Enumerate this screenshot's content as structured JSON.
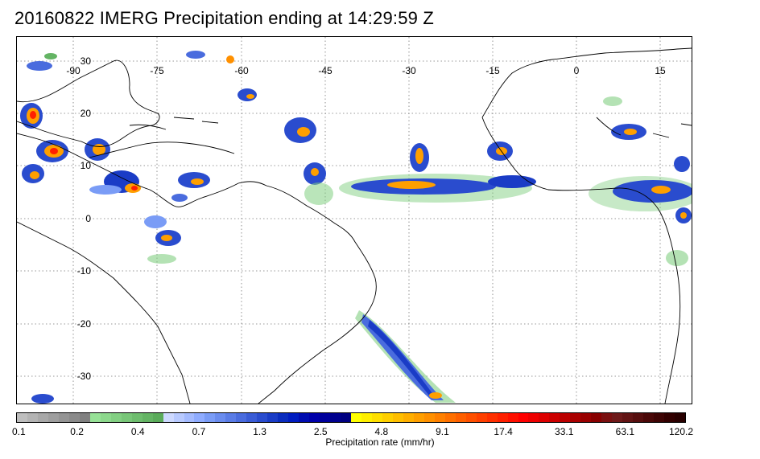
{
  "title": "20160822 IMERG Precipitation ending at 14:29:59 Z",
  "map": {
    "lon_labels": [
      "-90",
      "-75",
      "-60",
      "-45",
      "-30",
      "-15",
      "0",
      "15"
    ],
    "lat_labels": [
      "30",
      "20",
      "10",
      "0",
      "-10",
      "-20",
      "-30"
    ],
    "gridlines": "dotted",
    "coastline_color": "#000000",
    "background_color": "#ffffff",
    "precip_regions": [
      "Gulf of Mexico",
      "Central America",
      "Western Caribbean",
      "Atlantic ITCZ",
      "West Africa",
      "Southern Brazil coast",
      "Northwestern South America"
    ]
  },
  "colorbar": {
    "colors": [
      "#bebebe",
      "#b3b3b3",
      "#a8a8a8",
      "#9e9e9e",
      "#949494",
      "#8a8a8a",
      "#808080",
      "#96e196",
      "#8cd88c",
      "#82cf82",
      "#78c678",
      "#6ebd6e",
      "#64b464",
      "#5aab5a",
      "#cdd9ff",
      "#b8caff",
      "#a4bbff",
      "#8facff",
      "#7a9cf6",
      "#6a8cee",
      "#5a7ce6",
      "#4a6cde",
      "#3a5cd6",
      "#2a4cce",
      "#1a3cc6",
      "#0a2cbe",
      "#001cc0",
      "#000cb0",
      "#0000aa",
      "#00009c",
      "#00008e",
      "#000080",
      "#ffff00",
      "#ffef00",
      "#ffdf00",
      "#ffcf00",
      "#ffbf00",
      "#ffaf00",
      "#ff9f00",
      "#ff9000",
      "#ff8000",
      "#ff7000",
      "#ff6000",
      "#ff5000",
      "#ff4000",
      "#ff3000",
      "#ff2000",
      "#ff1000",
      "#ff0000",
      "#ee0000",
      "#dd0000",
      "#cc0000",
      "#bb0000",
      "#aa0000",
      "#990000",
      "#880000",
      "#7a1010",
      "#6e1a1a",
      "#621414",
      "#560e0e",
      "#4a0808",
      "#3e0404",
      "#320000",
      "#280000"
    ],
    "tick_labels": [
      "0.1",
      "0.2",
      "0.4",
      "0.7",
      "1.3",
      "2.5",
      "4.8",
      "9.1",
      "17.4",
      "33.1",
      "63.1",
      "120.2"
    ],
    "caption": "Precipitation rate (mm/hr)"
  }
}
